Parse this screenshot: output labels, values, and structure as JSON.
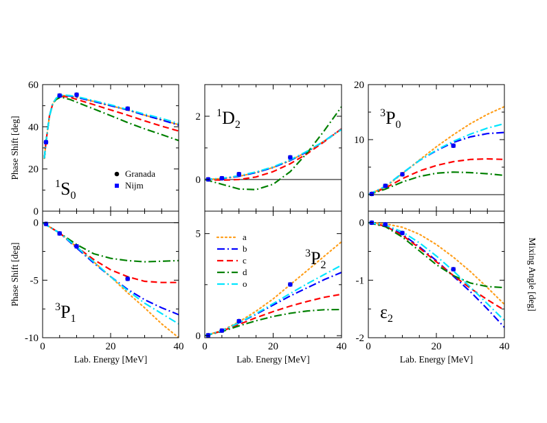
{
  "chart_data": [
    {
      "type": "line",
      "id": "1S0",
      "title_main": "S",
      "title_sup": "1",
      "title_sub": "0",
      "xlabel": "",
      "ylabel": "Phase Shift [deg]",
      "xlim": [
        0,
        40
      ],
      "ylim": [
        0,
        60
      ],
      "xticks": [],
      "yticks": [
        0,
        20,
        40,
        60
      ],
      "zero_line": false,
      "legend": [
        {
          "label": "Granada",
          "marker": "circle",
          "color": "#000000"
        },
        {
          "label": "Nijm",
          "marker": "square",
          "color": "#0000ff"
        }
      ],
      "series": [
        {
          "name": "a",
          "x": [
            0.5,
            1,
            2,
            3,
            4,
            5,
            6,
            8,
            10,
            15,
            20,
            25,
            30,
            35,
            40
          ],
          "y": [
            25,
            33,
            45,
            51,
            53.5,
            54.5,
            54.8,
            54.6,
            54,
            52,
            50,
            48,
            45.5,
            43.3,
            41
          ]
        },
        {
          "name": "b",
          "x": [
            0.5,
            1,
            2,
            3,
            4,
            5,
            6,
            8,
            10,
            15,
            20,
            25,
            30,
            35,
            40
          ],
          "y": [
            25,
            33,
            45,
            51,
            53.5,
            54.5,
            54.8,
            54.6,
            54,
            52,
            50,
            48,
            45.5,
            43.2,
            40.8
          ]
        },
        {
          "name": "c",
          "x": [
            0.5,
            1,
            2,
            3,
            4,
            5,
            6,
            8,
            10,
            15,
            20,
            25,
            30,
            35,
            40
          ],
          "y": [
            25,
            33,
            45,
            51,
            53.3,
            54.2,
            54.4,
            54,
            53,
            50.5,
            48,
            45.5,
            42.8,
            40.3,
            38
          ]
        },
        {
          "name": "d",
          "x": [
            0.5,
            1,
            2,
            3,
            4,
            5,
            6,
            8,
            10,
            15,
            20,
            25,
            30,
            35,
            40
          ],
          "y": [
            25,
            33,
            45,
            51,
            53,
            53.8,
            53.8,
            53,
            51.7,
            48.5,
            45.3,
            42,
            39,
            36.3,
            33.5
          ]
        },
        {
          "name": "o",
          "x": [
            0.5,
            1,
            2,
            3,
            4,
            5,
            6,
            8,
            10,
            15,
            20,
            25,
            30,
            35,
            40
          ],
          "y": [
            25,
            33,
            45,
            51,
            53.6,
            54.7,
            55,
            54.8,
            54.3,
            52.4,
            50.4,
            48.2,
            46,
            44,
            41.5
          ]
        }
      ],
      "points": {
        "Granada": {
          "x": [
            1,
            5,
            10,
            25
          ],
          "y": [
            32.7,
            54.8,
            55.2,
            48.6
          ]
        },
        "Nijm": {
          "x": [
            1,
            5,
            10,
            25
          ],
          "y": [
            32.7,
            54.8,
            55.2,
            48.6
          ]
        }
      }
    },
    {
      "type": "line",
      "id": "1D2",
      "title_main": "D",
      "title_sup": "1",
      "title_sub": "2",
      "xlabel": "",
      "ylabel": "",
      "xlim": [
        0,
        40
      ],
      "ylim": [
        -1,
        3
      ],
      "xticks": [],
      "yticks": [
        0,
        2
      ],
      "zero_line": true,
      "series": [
        {
          "name": "a",
          "x": [
            0,
            5,
            10,
            15,
            20,
            25,
            30,
            35,
            40
          ],
          "y": [
            0,
            0.03,
            0.1,
            0.22,
            0.38,
            0.6,
            0.88,
            1.22,
            1.6
          ]
        },
        {
          "name": "b",
          "x": [
            0,
            5,
            10,
            15,
            20,
            25,
            30,
            35,
            40
          ],
          "y": [
            0,
            0.03,
            0.1,
            0.22,
            0.38,
            0.6,
            0.88,
            1.22,
            1.6
          ]
        },
        {
          "name": "c",
          "x": [
            0,
            5,
            10,
            15,
            20,
            25,
            30,
            35,
            40
          ],
          "y": [
            0,
            -0.02,
            0,
            0.08,
            0.25,
            0.5,
            0.82,
            1.2,
            1.6
          ]
        },
        {
          "name": "d",
          "x": [
            0,
            5,
            10,
            15,
            20,
            25,
            30,
            35,
            40
          ],
          "y": [
            0,
            -0.15,
            -0.3,
            -0.32,
            -0.15,
            0.25,
            0.85,
            1.55,
            2.3
          ]
        },
        {
          "name": "o",
          "x": [
            0,
            5,
            10,
            15,
            20,
            25,
            30,
            35,
            40
          ],
          "y": [
            0,
            0.04,
            0.12,
            0.24,
            0.4,
            0.62,
            0.9,
            1.22,
            1.58
          ]
        }
      ],
      "points": {
        "Granada": {
          "x": [
            1,
            5,
            10,
            25
          ],
          "y": [
            0.005,
            0.04,
            0.17,
            0.7
          ]
        },
        "Nijm": {
          "x": [
            1,
            5,
            10,
            25
          ],
          "y": [
            0.005,
            0.04,
            0.17,
            0.7
          ]
        }
      }
    },
    {
      "type": "line",
      "id": "3P0",
      "title_main": "P",
      "title_sup": "3",
      "title_sub": "0",
      "xlabel": "",
      "ylabel": "",
      "xlim": [
        0,
        40
      ],
      "ylim": [
        -3,
        20
      ],
      "xticks": [],
      "yticks": [
        0,
        10,
        20
      ],
      "zero_line": true,
      "series": [
        {
          "name": "a",
          "x": [
            0,
            5,
            10,
            15,
            20,
            25,
            30,
            35,
            40
          ],
          "y": [
            0,
            1.4,
            3.8,
            6.3,
            8.7,
            10.9,
            12.9,
            14.6,
            16
          ]
        },
        {
          "name": "b",
          "x": [
            0,
            5,
            10,
            15,
            20,
            25,
            30,
            35,
            40
          ],
          "y": [
            0,
            1.5,
            3.9,
            6.2,
            8,
            9.5,
            10.5,
            11.1,
            11.3
          ]
        },
        {
          "name": "c",
          "x": [
            0,
            5,
            10,
            15,
            20,
            25,
            30,
            35,
            40
          ],
          "y": [
            0,
            1.2,
            2.9,
            4.3,
            5.3,
            6,
            6.4,
            6.5,
            6.4
          ]
        },
        {
          "name": "d",
          "x": [
            0,
            5,
            10,
            15,
            20,
            25,
            30,
            35,
            40
          ],
          "y": [
            0,
            1,
            2.3,
            3.3,
            3.9,
            4.1,
            4,
            3.8,
            3.5
          ]
        },
        {
          "name": "o",
          "x": [
            0,
            5,
            10,
            15,
            20,
            25,
            30,
            35,
            40
          ],
          "y": [
            0,
            1.5,
            3.9,
            6.2,
            8.1,
            9.7,
            11,
            12.1,
            12.9
          ]
        }
      ],
      "points": {
        "Granada": {
          "x": [
            1,
            5,
            10,
            25
          ],
          "y": [
            0.13,
            1.6,
            3.7,
            8.9
          ]
        },
        "Nijm": {
          "x": [
            1,
            5,
            10,
            25
          ],
          "y": [
            0.13,
            1.6,
            3.7,
            8.9
          ]
        }
      }
    },
    {
      "type": "line",
      "id": "3P1",
      "title_main": "P",
      "title_sup": "3",
      "title_sub": "1",
      "xlabel": "Lab. Energy [MeV]",
      "ylabel": "Phase Shift [deg]",
      "xlim": [
        0,
        40
      ],
      "ylim": [
        -10,
        1
      ],
      "xticks": [
        0,
        20,
        40
      ],
      "yticks": [
        -10,
        -5,
        0
      ],
      "zero_line": true,
      "series": [
        {
          "name": "a",
          "x": [
            0,
            5,
            10,
            15,
            20,
            25,
            30,
            35,
            40
          ],
          "y": [
            0,
            -0.9,
            -2.1,
            -3.4,
            -4.7,
            -6.1,
            -7.4,
            -8.8,
            -10
          ]
        },
        {
          "name": "b",
          "x": [
            0,
            5,
            10,
            15,
            20,
            25,
            30,
            35,
            40
          ],
          "y": [
            0,
            -0.9,
            -2.2,
            -3.5,
            -4.7,
            -5.8,
            -6.7,
            -7.4,
            -8
          ]
        },
        {
          "name": "c",
          "x": [
            0,
            5,
            10,
            15,
            20,
            25,
            30,
            35,
            40
          ],
          "y": [
            0,
            -0.9,
            -2.1,
            -3.2,
            -4.1,
            -4.7,
            -5.1,
            -5.2,
            -5.2
          ]
        },
        {
          "name": "d",
          "x": [
            0,
            5,
            10,
            15,
            20,
            25,
            30,
            35,
            40
          ],
          "y": [
            0,
            -0.9,
            -1.9,
            -2.7,
            -3.1,
            -3.3,
            -3.4,
            -3.35,
            -3.3
          ]
        },
        {
          "name": "o",
          "x": [
            0,
            5,
            10,
            15,
            20,
            25,
            30,
            35,
            40
          ],
          "y": [
            0,
            -0.9,
            -2.1,
            -3.4,
            -4.7,
            -5.9,
            -7,
            -7.9,
            -8.8
          ]
        }
      ],
      "points": {
        "Granada": {
          "x": [
            1,
            5,
            10,
            25
          ],
          "y": [
            -0.11,
            -0.94,
            -2.06,
            -4.88
          ]
        },
        "Nijm": {
          "x": [
            1,
            5,
            10,
            25
          ],
          "y": [
            -0.11,
            -0.94,
            -2.06,
            -4.88
          ]
        }
      }
    },
    {
      "type": "line",
      "id": "3P2",
      "title_main": "P",
      "title_sup": "3",
      "title_sub": "2",
      "xlabel": "Lab. Energy [MeV]",
      "ylabel": "",
      "xlim": [
        0,
        40
      ],
      "ylim": [
        -0.1,
        6.1
      ],
      "xticks": [
        0,
        20,
        40
      ],
      "yticks": [
        0,
        5
      ],
      "zero_line": false,
      "legend": [
        {
          "label": "a",
          "color": "#ff9f1c",
          "dash": "dotted"
        },
        {
          "label": "b",
          "color": "#0000ff",
          "dash": "dashdot"
        },
        {
          "label": "c",
          "color": "#ff0000",
          "dash": "dashed"
        },
        {
          "label": "d",
          "color": "#008000",
          "dash": "dashdot"
        },
        {
          "label": "o",
          "color": "#00e5ff",
          "dash": "dashdot"
        }
      ],
      "series": [
        {
          "name": "a",
          "x": [
            0,
            5,
            10,
            15,
            20,
            25,
            30,
            35,
            40
          ],
          "y": [
            0,
            0.25,
            0.68,
            1.2,
            1.8,
            2.5,
            3.2,
            3.9,
            4.6
          ]
        },
        {
          "name": "b",
          "x": [
            0,
            5,
            10,
            15,
            20,
            25,
            30,
            35,
            40
          ],
          "y": [
            0,
            0.24,
            0.62,
            1.05,
            1.5,
            1.95,
            2.35,
            2.75,
            3.1
          ]
        },
        {
          "name": "c",
          "x": [
            0,
            5,
            10,
            15,
            20,
            25,
            30,
            35,
            40
          ],
          "y": [
            0,
            0.22,
            0.55,
            0.88,
            1.18,
            1.45,
            1.68,
            1.88,
            2.03
          ]
        },
        {
          "name": "d",
          "x": [
            0,
            5,
            10,
            15,
            20,
            25,
            30,
            35,
            40
          ],
          "y": [
            0,
            0.2,
            0.48,
            0.73,
            0.94,
            1.1,
            1.21,
            1.27,
            1.28
          ]
        },
        {
          "name": "o",
          "x": [
            0,
            5,
            10,
            15,
            20,
            25,
            30,
            35,
            40
          ],
          "y": [
            0,
            0.24,
            0.63,
            1.08,
            1.57,
            2.07,
            2.55,
            3,
            3.45
          ]
        }
      ],
      "points": {
        "Granada": {
          "x": [
            1,
            5,
            10,
            25
          ],
          "y": [
            0.02,
            0.25,
            0.71,
            2.51
          ]
        },
        "Nijm": {
          "x": [
            1,
            5,
            10,
            25
          ],
          "y": [
            0.02,
            0.25,
            0.71,
            2.51
          ]
        }
      }
    },
    {
      "type": "line",
      "id": "eps2",
      "title_main": "ε",
      "title_sup": "",
      "title_sub": "2",
      "xlabel": "Lab. Energy [MeV]",
      "ylabel": "Mixing Angle [deg]",
      "xlim": [
        0,
        40
      ],
      "ylim": [
        -2,
        0.2
      ],
      "xticks": [
        0,
        20,
        40
      ],
      "yticks": [
        -2,
        -1,
        0
      ],
      "zero_line": true,
      "series": [
        {
          "name": "a",
          "x": [
            0,
            5,
            10,
            15,
            20,
            25,
            30,
            35,
            40
          ],
          "y": [
            0,
            -0.02,
            -0.08,
            -0.2,
            -0.38,
            -0.6,
            -0.85,
            -1.13,
            -1.42
          ]
        },
        {
          "name": "b",
          "x": [
            0,
            5,
            10,
            15,
            20,
            25,
            30,
            35,
            40
          ],
          "y": [
            0,
            -0.05,
            -0.2,
            -0.42,
            -0.66,
            -0.93,
            -1.2,
            -1.5,
            -1.82
          ]
        },
        {
          "name": "c",
          "x": [
            0,
            5,
            10,
            15,
            20,
            25,
            30,
            35,
            40
          ],
          "y": [
            0,
            -0.06,
            -0.22,
            -0.44,
            -0.68,
            -0.92,
            -1.14,
            -1.34,
            -1.52
          ]
        },
        {
          "name": "d",
          "x": [
            0,
            5,
            10,
            15,
            20,
            25,
            30,
            35,
            40
          ],
          "y": [
            0,
            -0.07,
            -0.25,
            -0.49,
            -0.73,
            -0.92,
            -1.05,
            -1.11,
            -1.13
          ]
        },
        {
          "name": "o",
          "x": [
            0,
            5,
            10,
            15,
            20,
            25,
            30,
            35,
            40
          ],
          "y": [
            0,
            -0.04,
            -0.16,
            -0.35,
            -0.58,
            -0.84,
            -1.12,
            -1.41,
            -1.7
          ]
        }
      ],
      "points": {
        "Granada": {
          "x": [
            1,
            5,
            10,
            25
          ],
          "y": [
            -0.001,
            -0.03,
            -0.18,
            -0.81
          ]
        },
        "Nijm": {
          "x": [
            1,
            5,
            10,
            25
          ],
          "y": [
            -0.001,
            -0.03,
            -0.18,
            -0.81
          ]
        }
      }
    }
  ],
  "styles": {
    "a": {
      "color": "#ff9f1c",
      "dash": "dotted"
    },
    "b": {
      "color": "#0000ff",
      "dash": "dashdot"
    },
    "c": {
      "color": "#ff0000",
      "dash": "dashed"
    },
    "d": {
      "color": "#008000",
      "dash": "dashdot"
    },
    "o": {
      "color": "#00e5ff",
      "dash": "dashdot"
    }
  }
}
